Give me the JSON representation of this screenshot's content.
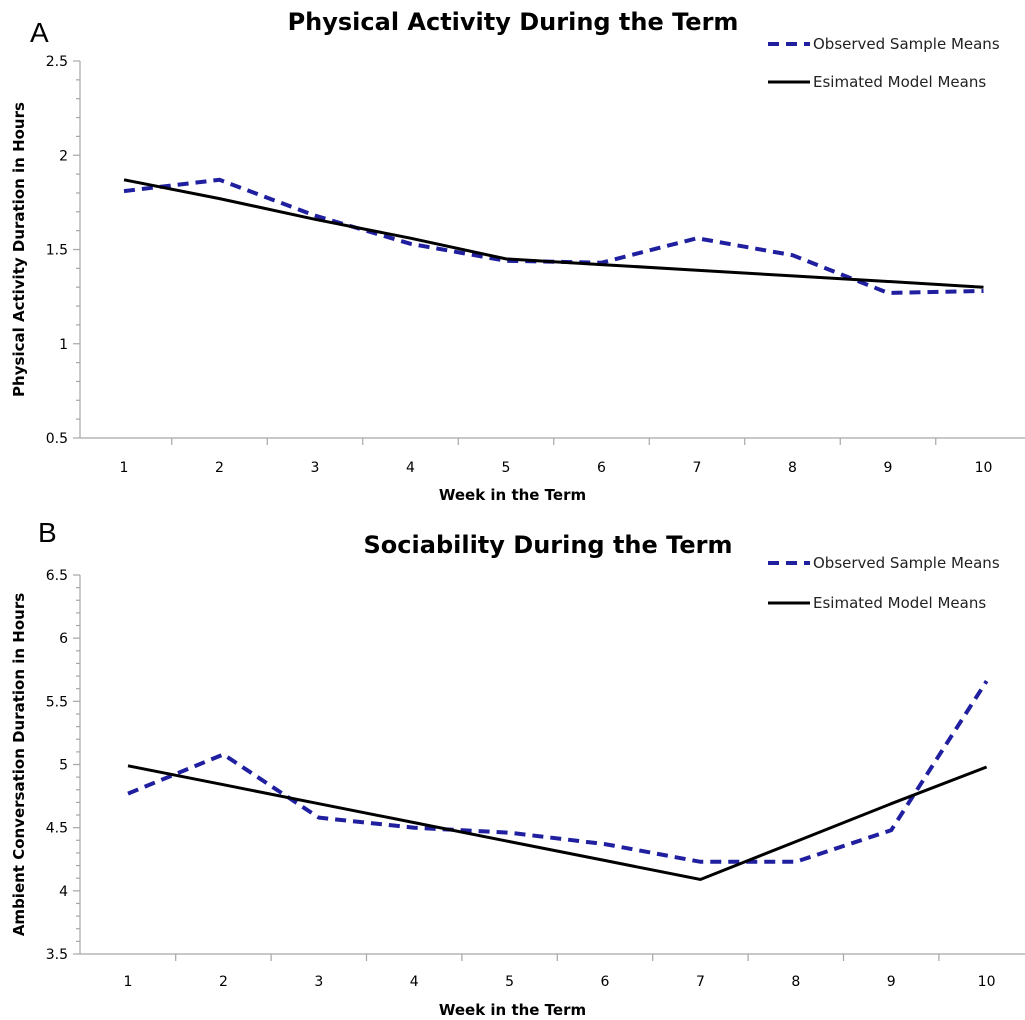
{
  "colors": {
    "observed": "#1f1fa0",
    "model": "#000000",
    "axis": "#a6a6a6"
  },
  "chart_data": [
    {
      "panel": "A",
      "type": "line",
      "title": "Physical Activity During the Term",
      "xlabel": "Week in the Term",
      "ylabel": "Physical Activity Duration in Hours",
      "categories": [
        "1",
        "2",
        "3",
        "4",
        "5",
        "6",
        "7",
        "8",
        "9",
        "10"
      ],
      "ylim": [
        0.5,
        2.5
      ],
      "yticks": [
        "0.5",
        "1",
        "1.5",
        "2",
        "2.5"
      ],
      "legend_position": "top-right",
      "series": [
        {
          "name": "Observed Sample Means",
          "style": "dashed",
          "values": [
            1.81,
            1.87,
            1.68,
            1.53,
            1.44,
            1.43,
            1.56,
            1.47,
            1.27,
            1.28
          ]
        },
        {
          "name": "Esimated Model Means",
          "style": "solid",
          "values": [
            1.87,
            1.77,
            1.66,
            1.56,
            1.45,
            1.42,
            1.39,
            1.36,
            1.33,
            1.3
          ]
        }
      ]
    },
    {
      "panel": "B",
      "type": "line",
      "title": "Sociability During the Term",
      "xlabel": "Week in the Term",
      "ylabel": "Ambient Conversation Duration in Hours",
      "categories": [
        "1",
        "2",
        "3",
        "4",
        "5",
        "6",
        "7",
        "8",
        "9",
        "10"
      ],
      "ylim": [
        3.5,
        6.5
      ],
      "yticks": [
        "3.5",
        "4",
        "4.5",
        "5",
        "5.5",
        "6",
        "6.5"
      ],
      "legend_position": "top-right",
      "series": [
        {
          "name": "Observed Sample Means",
          "style": "dashed",
          "values": [
            4.77,
            5.08,
            4.58,
            4.5,
            4.46,
            4.37,
            4.23,
            4.23,
            4.48,
            5.66
          ]
        },
        {
          "name": "Esimated Model Means",
          "style": "solid",
          "values": [
            4.99,
            4.84,
            4.69,
            4.54,
            4.39,
            4.24,
            4.09,
            4.39,
            4.69,
            4.98
          ]
        }
      ]
    }
  ]
}
